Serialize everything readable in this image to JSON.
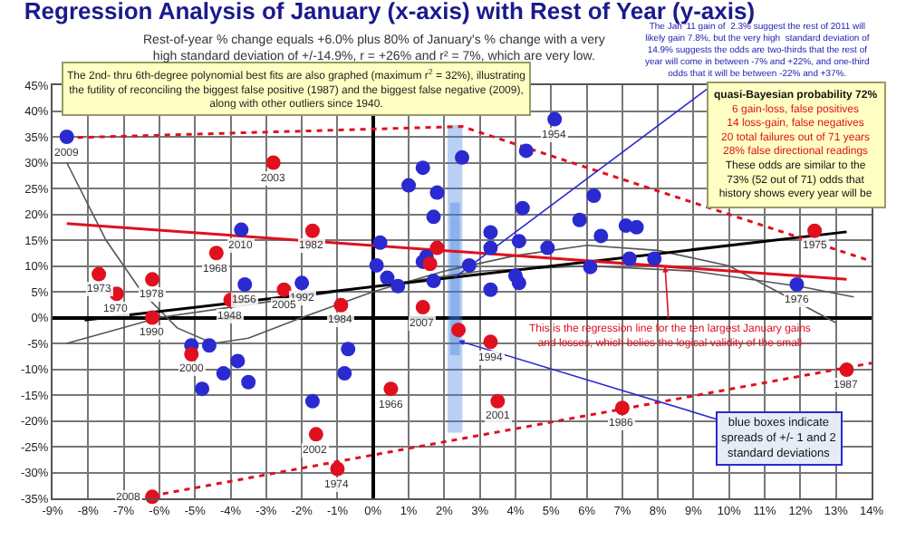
{
  "chart_data": {
    "type": "scatter",
    "title": "Regression Analysis of January (x-axis) with Rest of Year (y-axis)",
    "subtitle": "Rest-of-year % change equals +6.0% plus 80% of January's % change with a very\nhigh standard deviation of +/-14.9%, r = +26% and r² = 7%, which are very low.",
    "xlim": [
      -9,
      14
    ],
    "ylim": [
      -35,
      45
    ],
    "xticks": [
      {
        "value": -9,
        "label": "-9%"
      },
      {
        "value": -8,
        "label": "-8%"
      },
      {
        "value": -7,
        "label": "-7%"
      },
      {
        "value": -6,
        "label": "-6%"
      },
      {
        "value": -5,
        "label": "-5%"
      },
      {
        "value": -4,
        "label": "-4%"
      },
      {
        "value": -3,
        "label": "-3%"
      },
      {
        "value": -2,
        "label": "-2%"
      },
      {
        "value": -1,
        "label": "-1%"
      },
      {
        "value": 0,
        "label": "0%"
      },
      {
        "value": 1,
        "label": "1%"
      },
      {
        "value": 2,
        "label": "2%"
      },
      {
        "value": 3,
        "label": "3%"
      },
      {
        "value": 4,
        "label": "4%"
      },
      {
        "value": 5,
        "label": "5%"
      },
      {
        "value": 6,
        "label": "6%"
      },
      {
        "value": 7,
        "label": "7%"
      },
      {
        "value": 8,
        "label": "8%"
      },
      {
        "value": 9,
        "label": "9%"
      },
      {
        "value": 10,
        "label": "10%"
      },
      {
        "value": 11,
        "label": "11%"
      },
      {
        "value": 12,
        "label": "12%"
      },
      {
        "value": 13,
        "label": "13%"
      },
      {
        "value": 14,
        "label": "14%"
      }
    ],
    "yticks": [
      {
        "value": -35,
        "label": "-35%"
      },
      {
        "value": -30,
        "label": "-30%"
      },
      {
        "value": -25,
        "label": "-25%"
      },
      {
        "value": -20,
        "label": "-20%"
      },
      {
        "value": -15,
        "label": "-15%"
      },
      {
        "value": -10,
        "label": "-10%"
      },
      {
        "value": -5,
        "label": "-5%"
      },
      {
        "value": 0,
        "label": "0%"
      },
      {
        "value": 5,
        "label": "5%"
      },
      {
        "value": 10,
        "label": "10%"
      },
      {
        "value": 15,
        "label": "15%"
      },
      {
        "value": 20,
        "label": "20%"
      },
      {
        "value": 25,
        "label": "25%"
      },
      {
        "value": 30,
        "label": "30%"
      },
      {
        "value": 35,
        "label": "35%"
      },
      {
        "value": 40,
        "label": "40%"
      },
      {
        "value": 45,
        "label": "45%"
      }
    ],
    "grid": true,
    "series": [
      {
        "type": "bar",
        "color": "#3a7be0",
        "x": [
          2.3
        ],
        "base": [
          -22
        ],
        "values": [
          59
        ]
      },
      {
        "type": "bar",
        "color": "#3a7be0",
        "x": [
          2.3
        ],
        "base": [
          -7
        ],
        "values": [
          29
        ]
      },
      {
        "type": "line",
        "color": "#555555",
        "x": [
          -8.6,
          -7.5,
          -6.5,
          -5.5,
          -4.5,
          -3.5,
          -2,
          0,
          2,
          4,
          6,
          8,
          10,
          12,
          13
        ],
        "values": [
          30,
          15,
          5,
          -2,
          -5,
          -4,
          0,
          5,
          9,
          12,
          14,
          13,
          10,
          null,
          -1
        ]
      },
      {
        "type": "line",
        "color": "#555555",
        "x": [
          -8.6,
          -6,
          -3,
          0,
          3,
          6,
          9,
          12,
          13.5
        ],
        "values": [
          -5,
          0,
          3,
          6,
          9,
          10,
          9,
          6,
          4
        ]
      },
      {
        "type": "line",
        "color": "#000000",
        "x": [
          -8.1,
          13.3
        ],
        "values": [
          -0.5,
          16.6
        ]
      },
      {
        "type": "line",
        "color": "#e0101e",
        "x": [
          -8.6,
          13.3
        ],
        "values": [
          18.2,
          7.4
        ]
      },
      {
        "type": "line",
        "color": "#e0101e",
        "line_style": "dotted",
        "x": [
          -8.6,
          2.5,
          14
        ],
        "values": [
          34.8,
          37,
          10.9
        ]
      },
      {
        "type": "line",
        "color": "#e0101e",
        "line_style": "dotted",
        "x": [
          -6.2,
          14
        ],
        "values": [
          -34.5,
          -8.8
        ]
      },
      {
        "color": "#2a2ad0",
        "marker": "circle",
        "x": [
          -8.6,
          -3.7,
          -3.6,
          -2.0,
          5.1,
          11.9,
          -5.1,
          -4.6,
          -3.8,
          -4.2,
          -3.5,
          -4.8,
          -0.7,
          -0.8,
          -1.7,
          2.5,
          4.3,
          6.2,
          5.8,
          4.2,
          3.3,
          4.1,
          3.3,
          4.9,
          6.4,
          7.1,
          7.4,
          6.1,
          7.2,
          7.9,
          2.7,
          4.0,
          4.1,
          3.3,
          1.0,
          1.4,
          1.8,
          1.7,
          0.2,
          0.1,
          0.4,
          0.7,
          1.4,
          1.5,
          1.7
        ],
        "values": [
          35.0,
          17,
          6.4,
          6.7,
          38.4,
          6.4,
          -5.4,
          -5.4,
          -8.4,
          -10.8,
          -12.5,
          -13.8,
          -6.1,
          -10.8,
          -16.2,
          31,
          32.3,
          23.6,
          18.9,
          21.2,
          16.5,
          14.8,
          13.5,
          13.5,
          15.8,
          17.8,
          17.5,
          9.8,
          11.4,
          11.4,
          10.1,
          8.1,
          6.7,
          5.4,
          25.6,
          29,
          24.2,
          19.5,
          14.5,
          10.1,
          7.7,
          6.1,
          10.8,
          11.8,
          7.1
        ]
      },
      {
        "color": "#e0101e",
        "marker": "circle",
        "x": [
          -2.8,
          -1.7,
          -4.4,
          -7.7,
          -6.2,
          -7.2,
          -2.5,
          -4.0,
          -6.2,
          -0.9,
          1.4,
          -5.1,
          0.5,
          -1.6,
          -1.0,
          -6.2,
          3.3,
          3.5,
          7.0,
          13.3,
          12.4,
          1.8,
          1.6,
          2.4
        ],
        "values": [
          30,
          16.8,
          12.5,
          8.4,
          7.4,
          4.6,
          5.4,
          3.4,
          0,
          2.4,
          2.0,
          -7.1,
          -13.8,
          -22.6,
          -29.3,
          -34.7,
          -4.7,
          -16.2,
          -17.5,
          -10.1,
          16.8,
          13.5,
          10.4,
          -2.4
        ]
      }
    ],
    "annotations": [
      "The 2nd- thru 6th-degree polynomial best fits are also graphed (maximum r$^{2}$ = 32%), illustrating\nthe futility of reconciling the biggest false positive (1987) and the biggest false negative (2009),\nalong with other outliers since 1940.",
      {
        "text": "The Jan '11 gain of  2.3% suggest the rest of 2011 will\nlikely gain 7.8%, but the very high  standard deviation of\n14.9% suggests the odds are two-thirds that the rest of\nyear will come in between -7% and +22%, and one-third\nodds that it will be between -22% and +37%.",
        "x": 2.3,
        "y": 7.8
      },
      "quasi-Bayesian probability 72%",
      "6 gain-loss, false positives\n14 loss-gain, false negatives\n20 total failures out of 71 years\n28% false directional readings",
      "These odds are similar to the\n73% (52 out of 71) odds that\nhistory shows every year will be",
      {
        "text": "This is the regression line for the ten largest January gains\nand losses, which belies the logical validity of the small",
        "x": 8.2,
        "y": 9.9
      },
      {
        "text": "blue boxes indicate\nspreads of +/- 1 and 2\nstandard deviations",
        "x": 2.4,
        "y": -4.5
      },
      {
        "text": "2009",
        "x": -8.6,
        "y": 35.0
      },
      {
        "text": "2010",
        "x": -3.7,
        "y": 17
      },
      {
        "text": "1956",
        "x": -3.6,
        "y": 6.4
      },
      {
        "text": "1992",
        "x": -2.0,
        "y": 6.7
      },
      {
        "text": "1954",
        "x": 5.1,
        "y": 38.4
      },
      {
        "text": "1976",
        "x": 11.9,
        "y": 6.4
      },
      {
        "text": "2003",
        "x": -2.8,
        "y": 30
      },
      {
        "text": "1982",
        "x": -1.7,
        "y": 16.8
      },
      {
        "text": "1968",
        "x": -4.4,
        "y": 12.5
      },
      {
        "text": "1973",
        "x": -7.7,
        "y": 8.4
      },
      {
        "text": "1978",
        "x": -6.2,
        "y": 7.4
      },
      {
        "text": "1970",
        "x": -7.2,
        "y": 4.6
      },
      {
        "text": "2005",
        "x": -2.5,
        "y": 5.4
      },
      {
        "text": "1948",
        "x": -4.0,
        "y": 3.4
      },
      {
        "text": "1990",
        "x": -6.2,
        "y": 0
      },
      {
        "text": "1984",
        "x": -0.9,
        "y": 2.4
      },
      {
        "text": "2007",
        "x": 1.4,
        "y": 2.0
      },
      {
        "text": "2000",
        "x": -5.1,
        "y": -7.1
      },
      {
        "text": "1966",
        "x": 0.5,
        "y": -13.8
      },
      {
        "text": "2002",
        "x": -1.6,
        "y": -22.6
      },
      {
        "text": "1974",
        "x": -1.0,
        "y": -29.3
      },
      {
        "text": "2008",
        "x": -6.2,
        "y": -34.7
      },
      {
        "text": "1994",
        "x": 3.3,
        "y": -4.7
      },
      {
        "text": "2001",
        "x": 3.5,
        "y": -16.2
      },
      {
        "text": "1986",
        "x": 7.0,
        "y": -17.5
      },
      {
        "text": "1987",
        "x": 13.3,
        "y": -10.1
      },
      {
        "text": "1975",
        "x": 12.4,
        "y": 16.8
      }
    ]
  }
}
